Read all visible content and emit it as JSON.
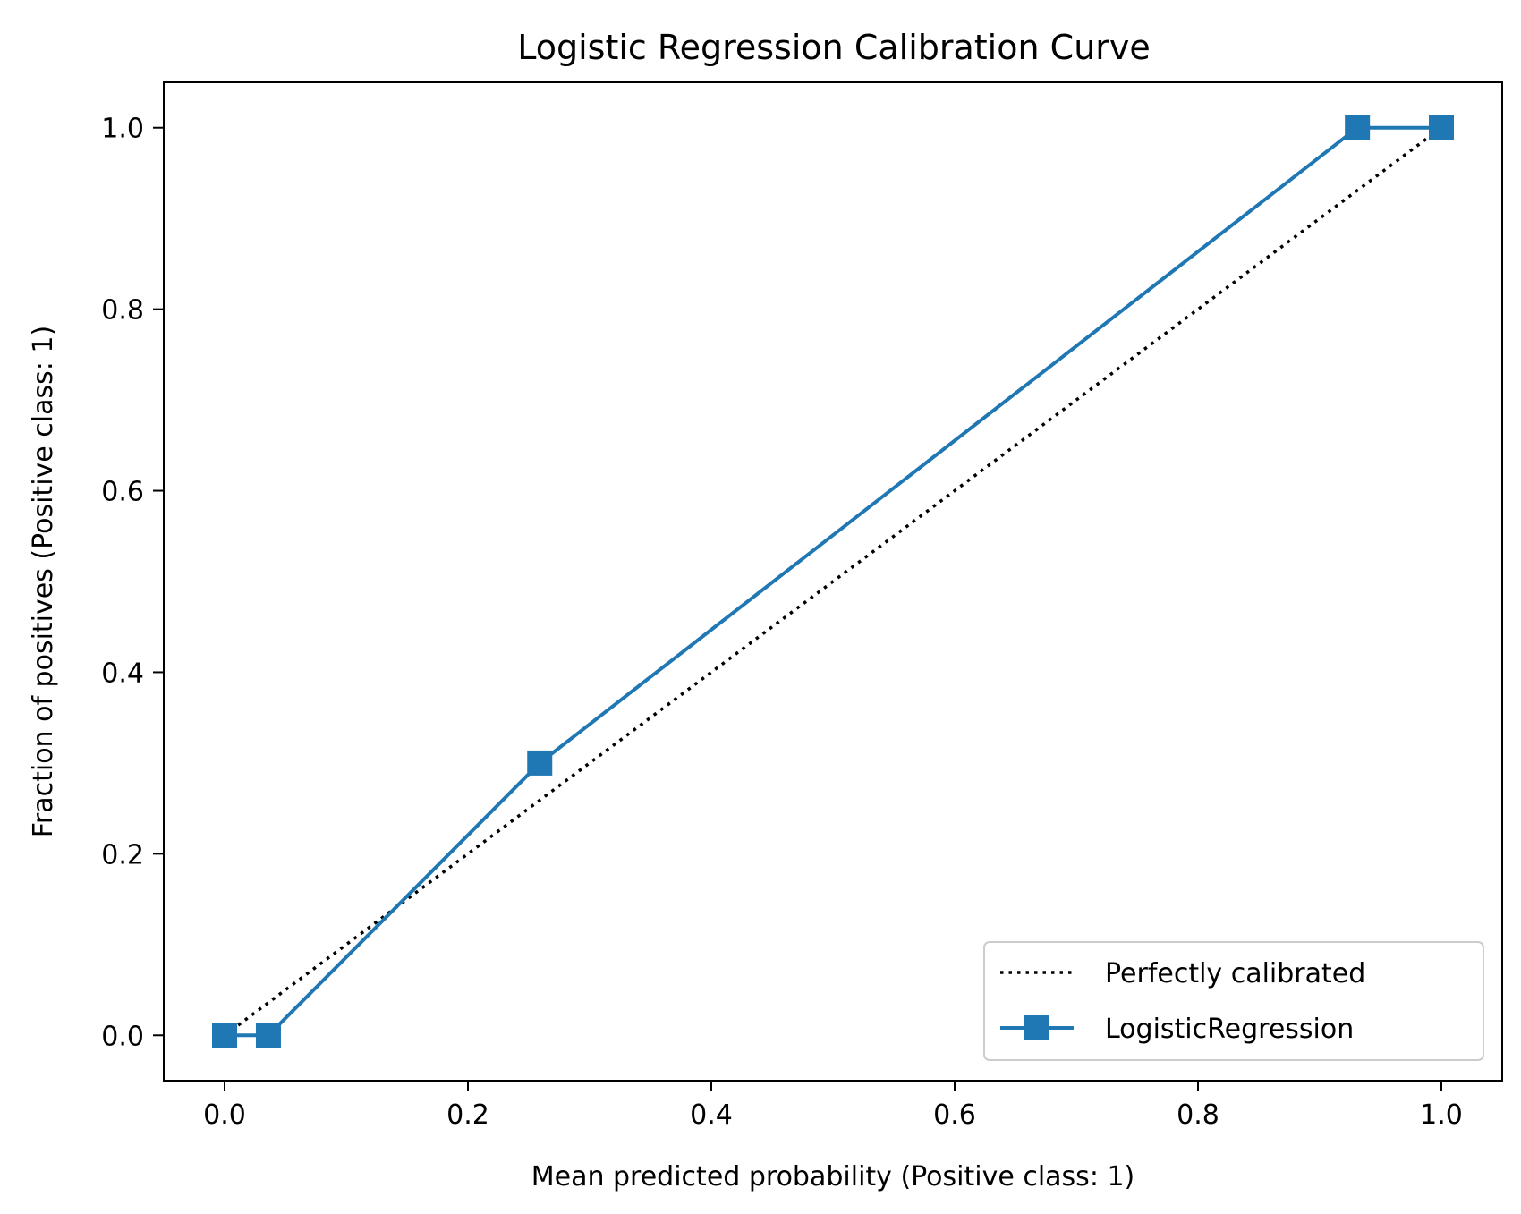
{
  "chart_data": {
    "type": "line",
    "title": "Logistic Regression Calibration Curve",
    "xlabel": "Mean predicted probability (Positive class: 1)",
    "ylabel": "Fraction of positives (Positive class: 1)",
    "xlim": [
      -0.05,
      1.05
    ],
    "ylim": [
      -0.05,
      1.05
    ],
    "xticks": [
      "0.0",
      "0.2",
      "0.4",
      "0.6",
      "0.8",
      "1.0"
    ],
    "yticks": [
      "0.0",
      "0.2",
      "0.4",
      "0.6",
      "0.8",
      "1.0"
    ],
    "tick_values": [
      0.0,
      0.2,
      0.4,
      0.6,
      0.8,
      1.0
    ],
    "grid": false,
    "legend_position": "lower-right",
    "series": [
      {
        "name": "Perfectly calibrated",
        "style": "dotted",
        "color": "#000000",
        "marker": "none",
        "x": [
          0.0,
          1.0
        ],
        "y": [
          0.0,
          1.0
        ]
      },
      {
        "name": "LogisticRegression",
        "style": "solid",
        "color": "#1f77b4",
        "marker": "square",
        "x": [
          0.0,
          0.036,
          0.259,
          0.931,
          1.0
        ],
        "y": [
          0.0,
          0.0,
          0.3,
          1.0,
          1.0
        ]
      }
    ]
  }
}
